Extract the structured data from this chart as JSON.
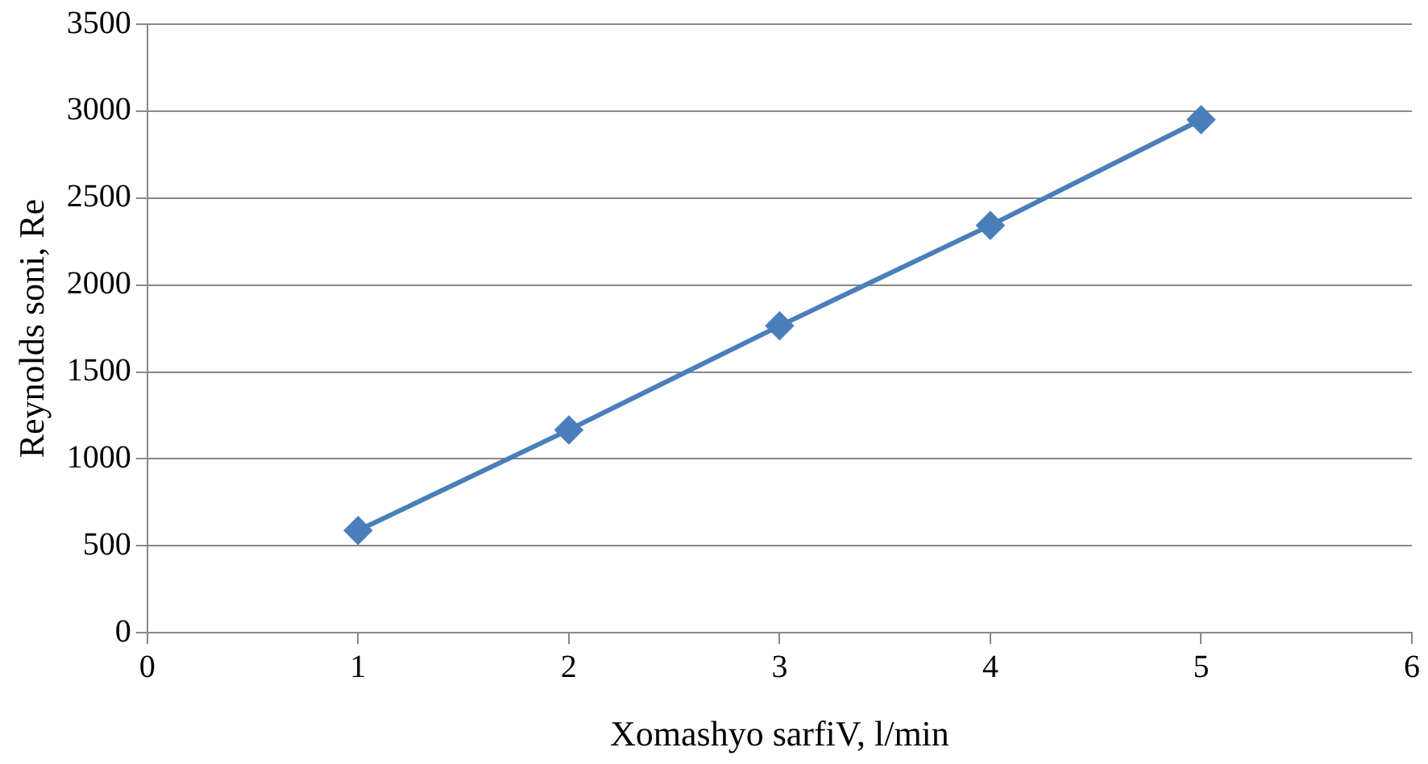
{
  "chart_data": {
    "type": "line",
    "xlabel": "Xomashyo sarfiV, l/min",
    "ylabel": "Reynolds soni, Re",
    "x": [
      1,
      2,
      3,
      4,
      5
    ],
    "series": [
      {
        "color": "#4a7ebb",
        "values": [
          588,
          1167,
          1765,
          2343,
          2951
        ]
      }
    ],
    "xlim": [
      0,
      6
    ],
    "xticks": [
      0,
      1,
      2,
      3,
      4,
      5,
      6
    ],
    "ylim": [
      0,
      3500
    ],
    "yticks": [
      0,
      500,
      1000,
      1500,
      2000,
      2500,
      3000,
      3500
    ],
    "grid": "y",
    "legend": false,
    "marker": "diamond",
    "line_style": "solid"
  }
}
